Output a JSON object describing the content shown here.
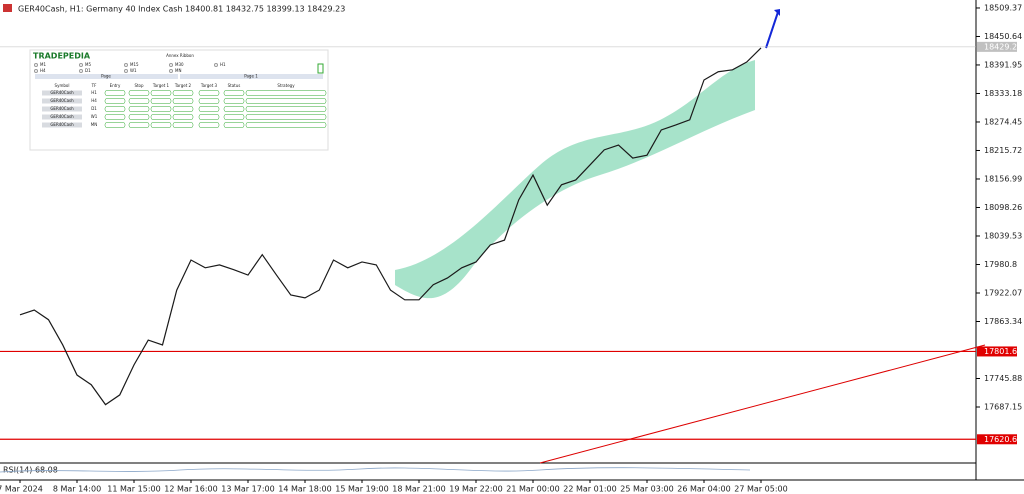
{
  "window": {
    "header": "GER40Cash, H1:  Germany 40 Index Cash  18400.81 18432.75 18399.13 18429.23",
    "indicator": "RSI(14) 68.08"
  },
  "panel": {
    "brand": "TRADEPEDIA",
    "title": "Annex Ribbon",
    "timeframes": [
      "M1",
      "M5",
      "M15",
      "M30",
      "H1",
      "H4",
      "D1",
      "W1",
      "MN"
    ],
    "pages": [
      "Page",
      "Page 1"
    ],
    "headers": [
      "Symbol",
      "TF",
      "Entry",
      "Stop",
      "Target 1",
      "Target 2",
      "Target 3",
      "Status",
      "Strategy"
    ],
    "rows": [
      [
        "GER40Cash",
        "H1"
      ],
      [
        "GER40Cash",
        "H4"
      ],
      [
        "GER40Cash",
        "D1"
      ],
      [
        "GER40Cash",
        "W1"
      ],
      [
        "GER40Cash",
        "MN"
      ]
    ]
  },
  "chart_data": {
    "type": "line",
    "color": "#1a1a1a",
    "categories": [
      "7 Mar 2024",
      null,
      null,
      null,
      "8 Mar 14:00",
      null,
      null,
      null,
      "11 Mar 15:00",
      null,
      null,
      null,
      "12 Mar 16:00",
      null,
      null,
      null,
      "13 Mar 17:00",
      null,
      null,
      null,
      "14 Mar 18:00",
      null,
      null,
      null,
      "15 Mar 19:00",
      null,
      null,
      null,
      "18 Mar 21:00",
      null,
      null,
      null,
      "19 Mar 22:00",
      null,
      null,
      null,
      "21 Mar 00:00",
      null,
      null,
      null,
      "22 Mar 01:00",
      null,
      null,
      null,
      "25 Mar 03:00",
      null,
      null,
      null,
      "26 Mar 04:00",
      null,
      null,
      null,
      "27 Mar 05:00"
    ],
    "values": [
      17877,
      17887,
      17867,
      17815,
      17753,
      17733,
      17692,
      17712,
      17774,
      17825,
      17815,
      17928,
      17990,
      17974,
      17980,
      17970,
      17959,
      18001,
      17959,
      17918,
      17912,
      17928,
      17990,
      17974,
      17986,
      17980,
      17928,
      17908,
      17908,
      17939,
      17953,
      17974,
      17986,
      18021,
      18031,
      18114,
      18165,
      18103,
      18145,
      18155,
      18186,
      18217,
      18227,
      18200,
      18206,
      18258,
      18268,
      18279,
      18361,
      18378,
      18382,
      18398,
      18427
    ],
    "ylim": [
      17573.8,
      18525.8
    ],
    "yticks": [
      18509.37,
      18450.64,
      18391.95,
      18333.18,
      18274.45,
      18215.72,
      18156.99,
      18098.26,
      18039.53,
      17980.8,
      17922.07,
      17863.34,
      17745.88,
      17687.15
    ],
    "levels": [
      17801.61,
      17620.62
    ],
    "level_color": "#e00000",
    "last_price": 18429.23
  }
}
